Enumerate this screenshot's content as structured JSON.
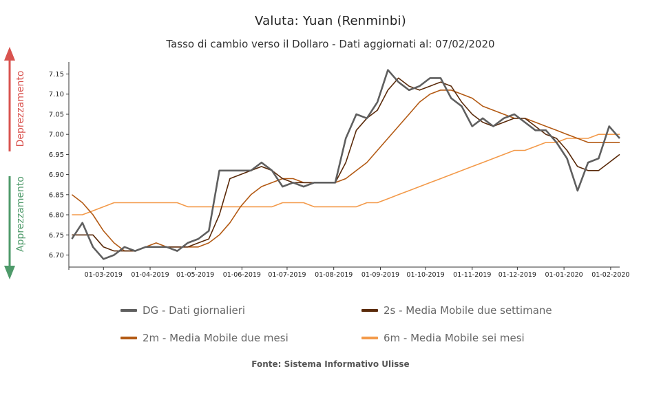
{
  "colors": {
    "dg": "#5f5f5f",
    "ma2s": "#5a2a0a",
    "ma2m": "#b35a14",
    "ma6m": "#f39a4a",
    "deprezzamento": "#d9534f",
    "apprezzamento": "#4e9a6a"
  },
  "side": {
    "deprezzamento": "Deprezzamento",
    "apprezzamento": "Apprezzamento"
  },
  "source": "Fonte: Sistema Informativo Ulisse",
  "chart_data": {
    "type": "line",
    "title": "Valuta: Yuan (Renminbi)",
    "subtitle": "Tasso di cambio verso il Dollaro - Dati aggiornati al: 07/02/2020",
    "xlabel": "",
    "ylabel": "",
    "ylim": [
      6.67,
      7.18
    ],
    "yticks": [
      "6.70",
      "6.75",
      "6.80",
      "6.85",
      "6.90",
      "6.95",
      "7.00",
      "7.05",
      "7.10",
      "7.15"
    ],
    "xticks": [
      "01-03-2019",
      "01-04-2019",
      "01-05-2019",
      "01-06-2019",
      "01-07-2019",
      "01-08-2019",
      "01-09-2019",
      "01-10-2019",
      "01-11-2019",
      "01-12-2019",
      "01-01-2020",
      "01-02-2020"
    ],
    "x": [
      "08-02-2019",
      "15-02-2019",
      "22-02-2019",
      "01-03-2019",
      "08-03-2019",
      "15-03-2019",
      "22-03-2019",
      "29-03-2019",
      "05-04-2019",
      "12-04-2019",
      "19-04-2019",
      "26-04-2019",
      "03-05-2019",
      "10-05-2019",
      "17-05-2019",
      "24-05-2019",
      "31-05-2019",
      "07-06-2019",
      "14-06-2019",
      "21-06-2019",
      "28-06-2019",
      "05-07-2019",
      "12-07-2019",
      "19-07-2019",
      "26-07-2019",
      "02-08-2019",
      "09-08-2019",
      "16-08-2019",
      "23-08-2019",
      "30-08-2019",
      "06-09-2019",
      "13-09-2019",
      "20-09-2019",
      "27-09-2019",
      "04-10-2019",
      "11-10-2019",
      "18-10-2019",
      "25-10-2019",
      "01-11-2019",
      "08-11-2019",
      "15-11-2019",
      "22-11-2019",
      "29-11-2019",
      "06-12-2019",
      "13-12-2019",
      "20-12-2019",
      "27-12-2019",
      "03-01-2020",
      "10-01-2020",
      "17-01-2020",
      "24-01-2020",
      "31-01-2020",
      "07-02-2020"
    ],
    "series": [
      {
        "name": "DG - Dati giornalieri",
        "color_key": "dg",
        "values": [
          6.74,
          6.78,
          6.72,
          6.69,
          6.7,
          6.72,
          6.71,
          6.72,
          6.72,
          6.72,
          6.71,
          6.73,
          6.74,
          6.76,
          6.91,
          6.91,
          6.91,
          6.91,
          6.93,
          6.91,
          6.87,
          6.88,
          6.87,
          6.88,
          6.88,
          6.88,
          6.99,
          7.05,
          7.04,
          7.08,
          7.16,
          7.13,
          7.11,
          7.12,
          7.14,
          7.14,
          7.09,
          7.07,
          7.02,
          7.04,
          7.02,
          7.04,
          7.05,
          7.03,
          7.01,
          7.01,
          6.98,
          6.94,
          6.86,
          6.93,
          6.94,
          7.02,
          6.99
        ]
      },
      {
        "name": "2s - Media Mobile due settimane",
        "color_key": "ma2s",
        "values": [
          6.75,
          6.75,
          6.75,
          6.72,
          6.71,
          6.71,
          6.71,
          6.72,
          6.72,
          6.72,
          6.72,
          6.72,
          6.73,
          6.74,
          6.8,
          6.89,
          6.9,
          6.91,
          6.92,
          6.91,
          6.89,
          6.88,
          6.88,
          6.88,
          6.88,
          6.88,
          6.93,
          7.01,
          7.04,
          7.06,
          7.11,
          7.14,
          7.12,
          7.11,
          7.12,
          7.13,
          7.12,
          7.08,
          7.05,
          7.03,
          7.02,
          7.03,
          7.04,
          7.04,
          7.02,
          7.0,
          6.99,
          6.96,
          6.92,
          6.91,
          6.91,
          6.93,
          6.95
        ]
      },
      {
        "name": "2m - Media Mobile due mesi",
        "color_key": "ma2m",
        "values": [
          6.85,
          6.83,
          6.8,
          6.76,
          6.73,
          6.71,
          6.71,
          6.72,
          6.73,
          6.72,
          6.72,
          6.72,
          6.72,
          6.73,
          6.75,
          6.78,
          6.82,
          6.85,
          6.87,
          6.88,
          6.89,
          6.89,
          6.88,
          6.88,
          6.88,
          6.88,
          6.89,
          6.91,
          6.93,
          6.96,
          6.99,
          7.02,
          7.05,
          7.08,
          7.1,
          7.11,
          7.11,
          7.1,
          7.09,
          7.07,
          7.06,
          7.05,
          7.04,
          7.04,
          7.03,
          7.02,
          7.01,
          7.0,
          6.99,
          6.98,
          6.98,
          6.98,
          6.98
        ]
      },
      {
        "name": "6m - Media Mobile sei mesi",
        "color_key": "ma6m",
        "values": [
          6.8,
          6.8,
          6.81,
          6.82,
          6.83,
          6.83,
          6.83,
          6.83,
          6.83,
          6.83,
          6.83,
          6.82,
          6.82,
          6.82,
          6.82,
          6.82,
          6.82,
          6.82,
          6.82,
          6.82,
          6.83,
          6.83,
          6.83,
          6.82,
          6.82,
          6.82,
          6.82,
          6.82,
          6.83,
          6.83,
          6.84,
          6.85,
          6.86,
          6.87,
          6.88,
          6.89,
          6.9,
          6.91,
          6.92,
          6.93,
          6.94,
          6.95,
          6.96,
          6.96,
          6.97,
          6.98,
          6.98,
          6.99,
          6.99,
          6.99,
          7.0,
          7.0,
          7.0
        ]
      }
    ]
  }
}
